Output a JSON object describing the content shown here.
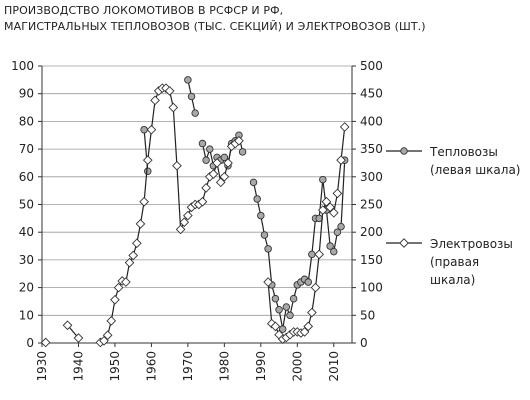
{
  "chart_data": {
    "type": "line",
    "title_lines": [
      "ПРОИЗВОДСТВО ЛОКОМОТИВОВ В РСФСР И РФ,",
      "МАГИСТРАЛЬНЫХ ТЕПЛОВОЗОВ (ТЫС. СЕКЦИЙ) И ЭЛЕКТРОВОЗОВ (ШТ.)"
    ],
    "xlim": [
      1930,
      2015
    ],
    "x_ticks": [
      "1930",
      "1940",
      "1950",
      "1960",
      "1970",
      "1980",
      "1990",
      "2000",
      "2010"
    ],
    "ylim_left": [
      0,
      100
    ],
    "y_ticks_left": [
      "0",
      "10",
      "20",
      "30",
      "40",
      "50",
      "60",
      "70",
      "80",
      "90",
      "100"
    ],
    "ylim_right": [
      0,
      500
    ],
    "y_ticks_right": [
      "0",
      "50",
      "100",
      "150",
      "200",
      "250",
      "300",
      "350",
      "400",
      "450",
      "500"
    ],
    "legend_position": "right",
    "series": [
      {
        "name_lines": [
          "Тепловозы",
          "(левая шкала)"
        ],
        "axis": "left",
        "marker": "circle",
        "segments": [
          [
            [
              1958,
              77
            ],
            [
              1959,
              62
            ]
          ],
          [
            [
              1970,
              95
            ],
            [
              1971,
              89
            ],
            [
              1972,
              83
            ]
          ],
          [
            [
              1974,
              72
            ],
            [
              1975,
              66
            ],
            [
              1976,
              70
            ],
            [
              1977,
              64
            ],
            [
              1978,
              67
            ],
            [
              1979,
              66
            ],
            [
              1980,
              67
            ],
            [
              1981,
              64
            ],
            [
              1982,
              72
            ],
            [
              1983,
              73
            ],
            [
              1984,
              75
            ],
            [
              1985,
              69
            ]
          ],
          [
            [
              1988,
              58
            ],
            [
              1989,
              52
            ],
            [
              1990,
              46
            ],
            [
              1991,
              39
            ],
            [
              1992,
              34
            ],
            [
              1993,
              21
            ],
            [
              1994,
              16
            ],
            [
              1995,
              12
            ],
            [
              1996,
              5
            ],
            [
              1997,
              13
            ],
            [
              1998,
              10
            ],
            [
              1999,
              16
            ],
            [
              2000,
              21
            ],
            [
              2001,
              22
            ],
            [
              2002,
              23
            ],
            [
              2003,
              22
            ],
            [
              2004,
              32
            ],
            [
              2005,
              45
            ],
            [
              2006,
              45
            ],
            [
              2007,
              59
            ],
            [
              2008,
              48
            ],
            [
              2009,
              35
            ],
            [
              2010,
              33
            ],
            [
              2011,
              40
            ],
            [
              2012,
              42
            ],
            [
              2013,
              66
            ]
          ]
        ]
      },
      {
        "name_lines": [
          "Электровозы",
          "(правая",
          "шкала)"
        ],
        "axis": "right",
        "marker": "diamond",
        "segments": [
          [
            [
              1931,
              1
            ]
          ],
          [
            [
              1937,
              32
            ],
            [
              1940,
              9
            ]
          ],
          [
            [
              1946,
              1
            ],
            [
              1947,
              4
            ],
            [
              1948,
              14
            ],
            [
              1949,
              40
            ],
            [
              1950,
              78
            ],
            [
              1951,
              100
            ],
            [
              1952,
              112
            ],
            [
              1953,
              110
            ],
            [
              1954,
              145
            ],
            [
              1955,
              158
            ],
            [
              1956,
              180
            ],
            [
              1957,
              215
            ],
            [
              1958,
              255
            ],
            [
              1959,
              330
            ],
            [
              1960,
              385
            ],
            [
              1961,
              438
            ],
            [
              1962,
              455
            ],
            [
              1963,
              460
            ],
            [
              1964,
              460
            ],
            [
              1965,
              455
            ],
            [
              1966,
              425
            ],
            [
              1967,
              320
            ],
            [
              1968,
              205
            ],
            [
              1969,
              218
            ],
            [
              1970,
              230
            ],
            [
              1971,
              245
            ],
            [
              1972,
              250
            ],
            [
              1973,
              250
            ],
            [
              1974,
              255
            ],
            [
              1975,
              280
            ],
            [
              1976,
              300
            ],
            [
              1977,
              305
            ],
            [
              1978,
              325
            ],
            [
              1979,
              290
            ],
            [
              1980,
              300
            ],
            [
              1981,
              325
            ],
            [
              1982,
              355
            ],
            [
              1983,
              360
            ],
            [
              1984,
              365
            ]
          ],
          [
            [
              1992,
              110
            ],
            [
              1993,
              35
            ],
            [
              1994,
              30
            ],
            [
              1995,
              15
            ],
            [
              1996,
              7
            ],
            [
              1997,
              10
            ],
            [
              1998,
              15
            ],
            [
              1999,
              20
            ],
            [
              2000,
              20
            ],
            [
              2001,
              18
            ],
            [
              2002,
              20
            ],
            [
              2003,
              30
            ],
            [
              2004,
              55
            ],
            [
              2005,
              100
            ],
            [
              2006,
              160
            ],
            [
              2007,
              240
            ],
            [
              2008,
              255
            ],
            [
              2009,
              245
            ],
            [
              2010,
              235
            ],
            [
              2011,
              270
            ],
            [
              2012,
              330
            ],
            [
              2013,
              390
            ]
          ]
        ]
      }
    ]
  }
}
